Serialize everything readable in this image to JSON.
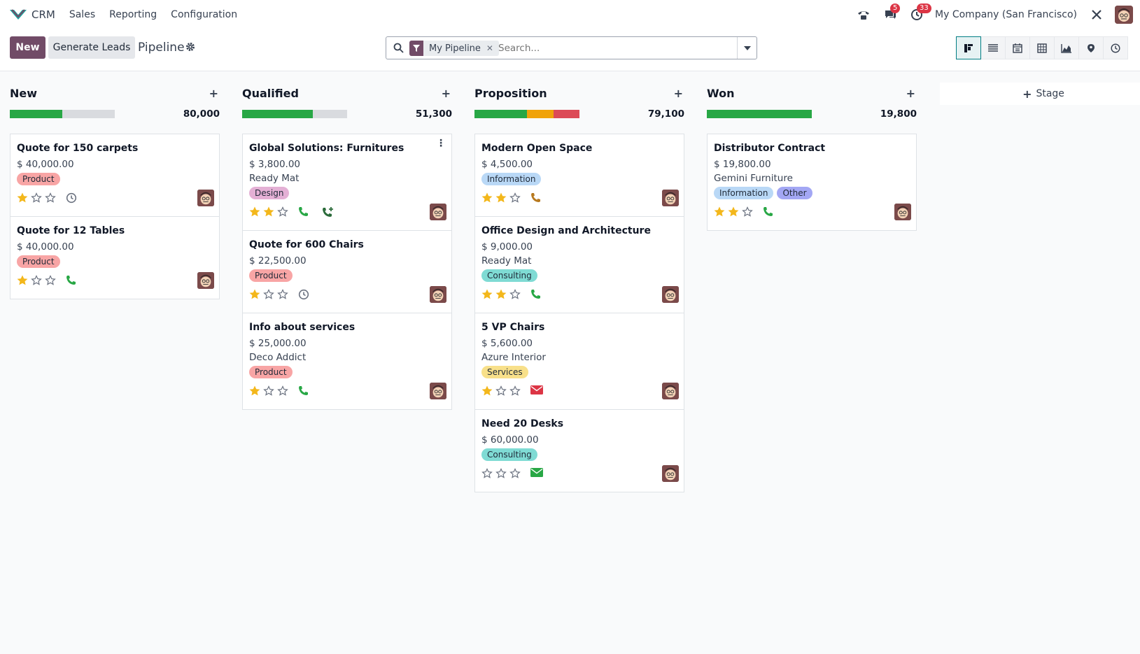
{
  "topbar": {
    "app_name": "CRM",
    "menu": [
      "Sales",
      "Reporting",
      "Configuration"
    ],
    "messages_count": "5",
    "activities_count": "33",
    "company": "My Company (San Francisco)"
  },
  "control": {
    "new_label": "New",
    "generate_label": "Generate Leads",
    "breadcrumb": "Pipeline",
    "facet_label": "My Pipeline",
    "search_placeholder": "Search...",
    "add_stage_label": "Stage"
  },
  "colors": {
    "brand": "#714b67",
    "progress_green": "#28a745",
    "progress_orange": "#f0a30a",
    "progress_red": "#dc4b57",
    "tag_product": "#f8a5a5",
    "tag_design": "#e4b0d5",
    "tag_information": "#b9d8f6",
    "tag_consulting": "#7fdbd4",
    "tag_services": "#f8e08a",
    "tag_other": "#a3a7f4"
  },
  "columns": [
    {
      "title": "New",
      "total": "80,000",
      "progress": {
        "green": 0.5,
        "orange": 0,
        "red": 0
      },
      "cards": [
        {
          "title": "Quote for 150 carpets",
          "amount": "$ 40,000.00",
          "partner": "",
          "tags": [
            {
              "label": "Product",
              "color": "tag_product"
            }
          ],
          "stars": 1,
          "activity": "clock-icon",
          "activity_color": "#6b7280"
        },
        {
          "title": "Quote for 12 Tables",
          "amount": "$ 40,000.00",
          "partner": "",
          "tags": [
            {
              "label": "Product",
              "color": "tag_product"
            }
          ],
          "stars": 1,
          "activity": "phone-icon",
          "activity_color": "#28a745"
        }
      ]
    },
    {
      "title": "Qualified",
      "total": "51,300",
      "progress": {
        "green": 0.67,
        "orange": 0,
        "red": 0
      },
      "cards": [
        {
          "title": "Global Solutions: Furnitures",
          "amount": "$ 3,800.00",
          "partner": "Ready Mat",
          "tags": [
            {
              "label": "Design",
              "color": "tag_design"
            }
          ],
          "stars": 2,
          "activity": "phone-icon",
          "activity_color": "#28a745",
          "extra": "phone-plus-icon",
          "kebab": true
        },
        {
          "title": "Quote for 600 Chairs",
          "amount": "$ 22,500.00",
          "partner": "",
          "tags": [
            {
              "label": "Product",
              "color": "tag_product"
            }
          ],
          "stars": 1,
          "activity": "clock-icon",
          "activity_color": "#6b7280"
        },
        {
          "title": "Info about services",
          "amount": "$ 25,000.00",
          "partner": "Deco Addict",
          "tags": [
            {
              "label": "Product",
              "color": "tag_product"
            }
          ],
          "stars": 1,
          "activity": "phone-icon",
          "activity_color": "#28a745"
        }
      ]
    },
    {
      "title": "Proposition",
      "total": "79,100",
      "progress": {
        "green": 0.5,
        "orange": 0.25,
        "red": 0.25
      },
      "cards": [
        {
          "title": "Modern Open Space",
          "amount": "$ 4,500.00",
          "partner": "",
          "tags": [
            {
              "label": "Information",
              "color": "tag_information"
            }
          ],
          "stars": 2,
          "activity": "phone-icon",
          "activity_color": "#b7791f"
        },
        {
          "title": "Office Design and Architecture",
          "amount": "$ 9,000.00",
          "partner": "Ready Mat",
          "tags": [
            {
              "label": "Consulting",
              "color": "tag_consulting"
            }
          ],
          "stars": 2,
          "activity": "phone-icon",
          "activity_color": "#28a745"
        },
        {
          "title": "5 VP Chairs",
          "amount": "$ 5,600.00",
          "partner": "Azure Interior",
          "tags": [
            {
              "label": "Services",
              "color": "tag_services"
            }
          ],
          "stars": 1,
          "activity": "email-icon",
          "activity_color": "#dc3545"
        },
        {
          "title": "Need 20 Desks",
          "amount": "$ 60,000.00",
          "partner": "",
          "tags": [
            {
              "label": "Consulting",
              "color": "tag_consulting"
            }
          ],
          "stars": 0,
          "activity": "email-icon",
          "activity_color": "#28a745"
        }
      ]
    },
    {
      "title": "Won",
      "total": "19,800",
      "progress": {
        "green": 1.0,
        "orange": 0,
        "red": 0
      },
      "cards": [
        {
          "title": "Distributor Contract",
          "amount": "$ 19,800.00",
          "partner": "Gemini Furniture",
          "tags": [
            {
              "label": "Information",
              "color": "tag_information"
            },
            {
              "label": "Other",
              "color": "tag_other"
            }
          ],
          "stars": 2,
          "activity": "phone-icon",
          "activity_color": "#28a745"
        }
      ]
    }
  ]
}
